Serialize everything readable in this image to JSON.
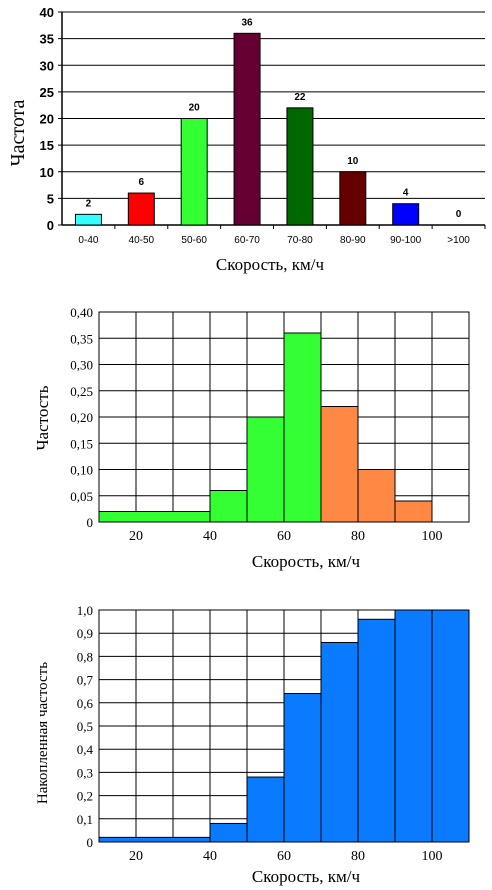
{
  "chart_data": [
    {
      "type": "bar",
      "categories": [
        "0-40",
        "40-50",
        "50-60",
        "60-70",
        "70-80",
        "80-90",
        "90-100",
        ">100"
      ],
      "values": [
        2,
        6,
        20,
        36,
        22,
        10,
        4,
        0
      ],
      "colors": [
        "#33ffff",
        "#ff0000",
        "#33ff33",
        "#660033",
        "#006600",
        "#660000",
        "#0000ff",
        "#cccccc"
      ],
      "ylabel": "Частота",
      "xlabel": "Скорость, км/ч",
      "ylim": [
        0,
        40
      ],
      "yticks": [
        "0",
        "5",
        "10",
        "15",
        "20",
        "25",
        "30",
        "35",
        "40"
      ],
      "grid": true
    },
    {
      "type": "bar",
      "bins": [
        [
          10,
          40
        ],
        [
          40,
          50
        ],
        [
          50,
          60
        ],
        [
          60,
          70
        ],
        [
          70,
          80
        ],
        [
          80,
          90
        ],
        [
          90,
          100
        ],
        [
          100,
          110
        ]
      ],
      "values": [
        0.02,
        0.06,
        0.2,
        0.36,
        0.22,
        0.1,
        0.04,
        0.0
      ],
      "colors": [
        "#33ff33",
        "#33ff33",
        "#33ff33",
        "#33ff33",
        "#ff8844",
        "#ff8844",
        "#ff8844",
        "#ff8844"
      ],
      "ylabel": "Частость",
      "xlabel": "Скорость, км/ч",
      "xlim": [
        10,
        110
      ],
      "ylim": [
        0,
        0.4
      ],
      "yticks": [
        "0",
        "0,05",
        "0,10",
        "0,15",
        "0,20",
        "0,25",
        "0,30",
        "0,35",
        "0,40"
      ],
      "xticks": [
        "20",
        "40",
        "60",
        "80",
        "100"
      ],
      "grid": true
    },
    {
      "type": "bar",
      "bins": [
        [
          10,
          40
        ],
        [
          40,
          50
        ],
        [
          50,
          60
        ],
        [
          60,
          70
        ],
        [
          70,
          80
        ],
        [
          80,
          90
        ],
        [
          90,
          100
        ],
        [
          100,
          110
        ]
      ],
      "values": [
        0.02,
        0.08,
        0.28,
        0.64,
        0.86,
        0.96,
        1.0,
        1.0
      ],
      "colors": [
        "#0a7bff"
      ],
      "ylabel": "Накопленная частость",
      "xlabel": "Скорость, км/ч",
      "xlim": [
        10,
        110
      ],
      "ylim": [
        0,
        1.0
      ],
      "yticks": [
        "0",
        "0,1",
        "0,2",
        "0,3",
        "0,4",
        "0,5",
        "0,6",
        "0,7",
        "0,8",
        "0,9",
        "1,0"
      ],
      "xticks": [
        "20",
        "40",
        "60",
        "80",
        "100"
      ],
      "grid": true
    }
  ]
}
